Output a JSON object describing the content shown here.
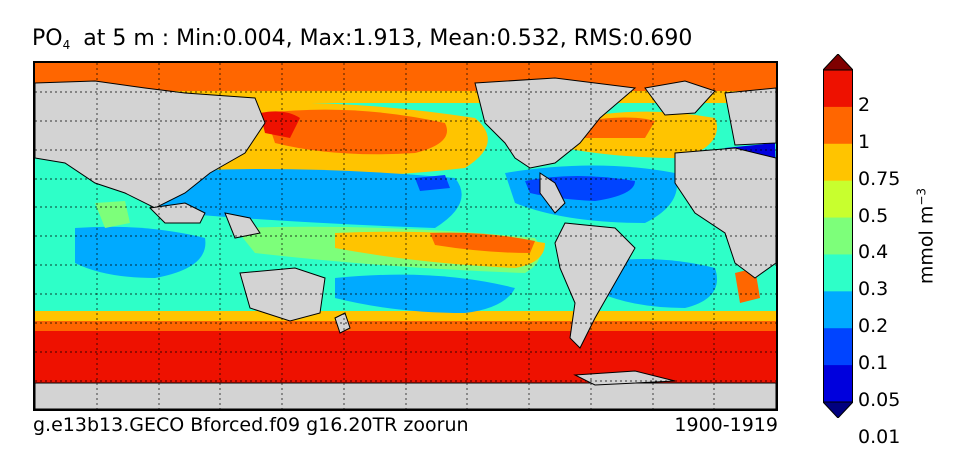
{
  "title": {
    "var_main": "PO",
    "var_sub": "4",
    "rest": "at 5 m : Min:0.004, Max:1.913, Mean:0.532, RMS:0.690"
  },
  "footer": {
    "left": "g.e13b13.GECO Bforced.f09 g16.20TR zoorun",
    "right": "1900-1919"
  },
  "colorbar": {
    "unit_base": "mmol m",
    "unit_exp": "−3",
    "ticks": [
      "2",
      "1",
      "0.75",
      "0.5",
      "0.4",
      "0.3",
      "0.2",
      "0.1",
      "0.05",
      "0.01"
    ],
    "colors": [
      "#7f0000",
      "#ee1100",
      "#ff6600",
      "#ffc400",
      "#c8ff2e",
      "#7dff7a",
      "#2effc8",
      "#00aaff",
      "#0044ff",
      "#0000dd",
      "#00007f"
    ],
    "extend": "both"
  },
  "colors": {
    "land": "#d3d3d3",
    "grid": "#000000"
  }
}
